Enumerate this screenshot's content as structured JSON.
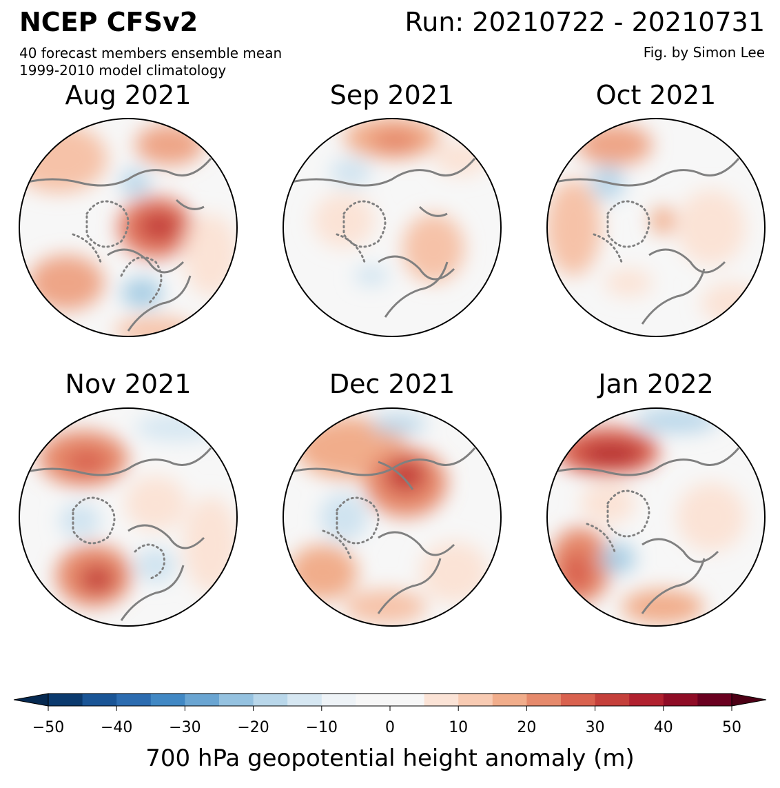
{
  "header": {
    "title": "NCEP CFSv2",
    "run": "Run: 20210722 - 20210731",
    "subtitle1": "40 forecast members ensemble mean",
    "subtitle2": "1999-2010 model climatology",
    "credit": "Fig. by Simon Lee"
  },
  "panels": [
    {
      "title": "Aug 2021"
    },
    {
      "title": "Sep 2021"
    },
    {
      "title": "Oct 2021"
    },
    {
      "title": "Nov 2021"
    },
    {
      "title": "Dec 2021"
    },
    {
      "title": "Jan 2022"
    }
  ],
  "colorbar": {
    "label": "700 hPa geopotential height anomaly (m)",
    "range": [
      -50,
      50
    ],
    "step": 5,
    "ticks": [
      "−50",
      "−40",
      "−30",
      "−20",
      "−10",
      "0",
      "10",
      "20",
      "30",
      "40",
      "50"
    ],
    "colors": [
      "#0b3a6e",
      "#1a5596",
      "#2c6cb0",
      "#4188c4",
      "#6aa5d2",
      "#95c2e0",
      "#b9d7ea",
      "#d6e7f2",
      "#eef3f7",
      "#f7f7f7",
      "#f7f7f7",
      "#fbe3d6",
      "#f8cbb3",
      "#f1ad8b",
      "#e68a6c",
      "#d9624f",
      "#c5403b",
      "#b1212f",
      "#8f0c26",
      "#6a0020"
    ],
    "extend_low": "#062951",
    "extend_high": "#4d0015"
  },
  "colors": {
    "land_outline": "#808080",
    "warm": "#d6604d",
    "cool": "#92c5de"
  }
}
